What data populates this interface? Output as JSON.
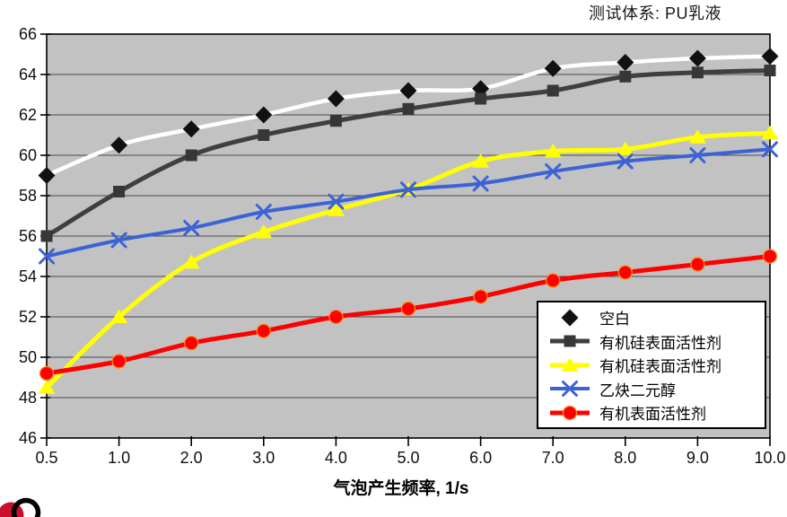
{
  "chart_data": {
    "type": "line",
    "title": "测试体系: PU乳液",
    "xlabel": "气泡产生频率, 1/s",
    "ylabel": "",
    "x_labels": [
      "0.5",
      "1.0",
      "2.0",
      "3.0",
      "4.0",
      "5.0",
      "6.0",
      "7.0",
      "8.0",
      "9.0",
      "10.0"
    ],
    "ylim": [
      46,
      66
    ],
    "y_tick_step": 2,
    "grid": "horizontal",
    "legend_position": "inside-bottom-right",
    "plot_bg": "#c2c2c2",
    "gridline_color": "#4a4a4a",
    "series": [
      {
        "name": "空白",
        "marker": "diamond",
        "line_color": "#ffffff",
        "marker_color": "#111111",
        "values": [
          59.0,
          60.5,
          61.3,
          62.0,
          62.8,
          63.2,
          63.3,
          64.3,
          64.6,
          64.8,
          64.9
        ]
      },
      {
        "name": "有机硅表面活性剂",
        "marker": "square",
        "line_color": "#3f3f3f",
        "marker_color": "#373737",
        "values": [
          56.0,
          58.2,
          60.0,
          61.0,
          61.7,
          62.3,
          62.8,
          63.2,
          63.9,
          64.1,
          64.2
        ]
      },
      {
        "name": "有机硅表面活性剂",
        "marker": "triangle",
        "line_color": "#ffff00",
        "marker_color": "#ffff00",
        "values": [
          48.5,
          52.0,
          54.7,
          56.2,
          57.3,
          58.3,
          59.7,
          60.2,
          60.3,
          60.9,
          61.1
        ]
      },
      {
        "name": "乙炔二元醇",
        "marker": "x",
        "line_color": "#3b63d6",
        "marker_color": "#3b63d6",
        "values": [
          55.0,
          55.8,
          56.4,
          57.2,
          57.7,
          58.3,
          58.6,
          59.2,
          59.7,
          60.0,
          60.3
        ]
      },
      {
        "name": "有机表面活性剂",
        "marker": "circle",
        "line_color": "#ff0000",
        "marker_color": "#ff0000",
        "values": [
          49.2,
          49.8,
          50.7,
          51.3,
          52.0,
          52.4,
          53.0,
          53.8,
          54.2,
          54.6,
          55.0
        ]
      }
    ]
  },
  "logo": {
    "dot_color": "#c8102e",
    "ring_color": "#000000"
  }
}
